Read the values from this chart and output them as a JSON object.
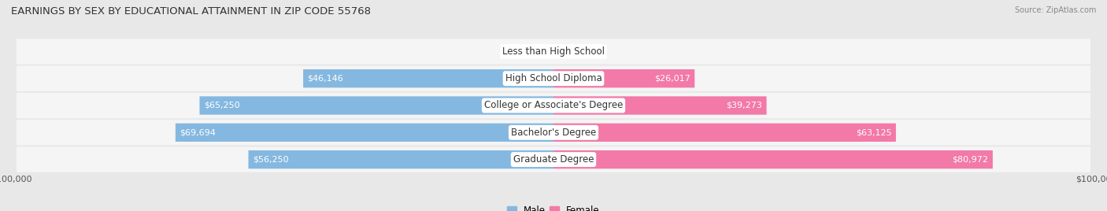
{
  "title": "EARNINGS BY SEX BY EDUCATIONAL ATTAINMENT IN ZIP CODE 55768",
  "source": "Source: ZipAtlas.com",
  "categories": [
    "Less than High School",
    "High School Diploma",
    "College or Associate's Degree",
    "Bachelor's Degree",
    "Graduate Degree"
  ],
  "male_values": [
    0,
    46146,
    65250,
    69694,
    56250
  ],
  "female_values": [
    0,
    26017,
    39273,
    63125,
    80972
  ],
  "male_color": "#85b8e0",
  "female_color": "#f279a8",
  "male_legend_color": "#85b8e0",
  "female_legend_color": "#f279a8",
  "max_value": 100000,
  "background_color": "#e8e8e8",
  "row_light_color": "#f5f5f5",
  "title_fontsize": 9.5,
  "label_fontsize": 8.5,
  "value_fontsize": 8,
  "axis_label_fontsize": 8
}
